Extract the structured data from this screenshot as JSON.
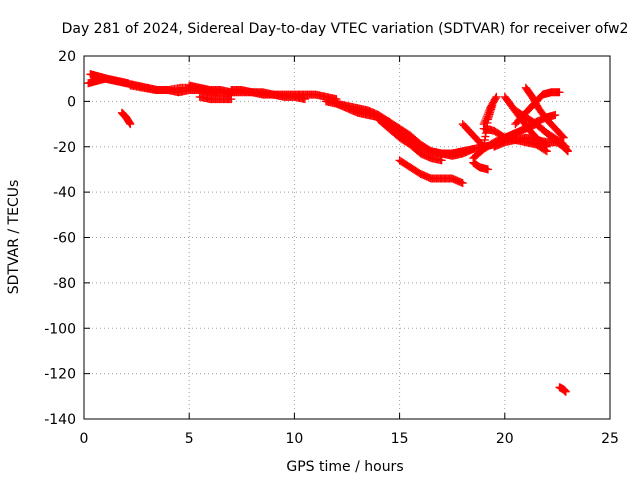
{
  "chart_data": {
    "type": "scatter",
    "title": "Day 281 of 2024, Sidereal Day-to-day VTEC variation (SDTVAR) for receiver ofw2",
    "xlabel": "GPS time / hours",
    "ylabel": "SDTVAR / TECUs",
    "xlim": [
      0,
      25
    ],
    "ylim": [
      -140,
      20
    ],
    "xticks": [
      0,
      5,
      10,
      15,
      20,
      25
    ],
    "yticks": [
      -140,
      -120,
      -100,
      -80,
      -60,
      -40,
      -20,
      0,
      20
    ],
    "grid": true,
    "marker": "+",
    "color": "#ff0000",
    "series": [
      {
        "name": "s1",
        "x": [
          0.2,
          0.6,
          1.0,
          1.5,
          2.0,
          2.5,
          3.0,
          3.5,
          4.0,
          4.5,
          5.0,
          5.5,
          6.0,
          6.5,
          7.0
        ],
        "y": [
          8,
          9,
          10,
          9,
          8,
          7,
          6,
          5,
          5,
          4,
          5,
          5,
          4,
          4,
          3
        ]
      },
      {
        "name": "s2",
        "x": [
          0.3,
          0.7,
          1.1,
          1.6,
          2.1
        ],
        "y": [
          12,
          11,
          10,
          9,
          8
        ]
      },
      {
        "name": "s3",
        "x": [
          1.8,
          2.0,
          2.2
        ],
        "y": [
          -5,
          -7,
          -10
        ]
      },
      {
        "name": "s4",
        "x": [
          2.2,
          2.8,
          3.4,
          4.0,
          4.6,
          5.2,
          5.8,
          6.3
        ],
        "y": [
          7,
          6,
          5,
          5,
          6,
          6,
          5,
          4
        ]
      },
      {
        "name": "s5",
        "x": [
          5.0,
          5.5,
          6.0,
          6.5,
          7.0,
          7.5,
          8.0,
          8.5,
          9.0,
          9.5,
          10.0,
          10.5,
          11.0,
          11.5,
          12.0
        ],
        "y": [
          7,
          6,
          5,
          5,
          4,
          4,
          4,
          4,
          3,
          3,
          3,
          3,
          3,
          2,
          1
        ]
      },
      {
        "name": "s6",
        "x": [
          5.5,
          6.0,
          6.5,
          7.0
        ],
        "y": [
          2,
          1,
          1,
          1
        ]
      },
      {
        "name": "s7",
        "x": [
          7.0,
          7.5,
          8.0,
          8.5,
          9.0,
          9.5,
          10.0,
          10.5
        ],
        "y": [
          5,
          5,
          4,
          3,
          3,
          2,
          2,
          1
        ]
      },
      {
        "name": "s8",
        "x": [
          11.5,
          12.0,
          12.5,
          13.0,
          13.5,
          14.0,
          14.5,
          15.0,
          15.5,
          16.0,
          16.5,
          17.0,
          17.5,
          18.0
        ],
        "y": [
          0,
          -1,
          -2,
          -3,
          -4,
          -6,
          -9,
          -13,
          -17,
          -20,
          -22,
          -23,
          -23,
          -22
        ]
      },
      {
        "name": "s9",
        "x": [
          12.0,
          12.5,
          13.0,
          13.5,
          14.0,
          14.5,
          15.0,
          15.5,
          16.0,
          16.5,
          17.0,
          17.5,
          18.0,
          18.5
        ],
        "y": [
          -1,
          -3,
          -5,
          -6,
          -7,
          -9,
          -12,
          -15,
          -19,
          -22,
          -23,
          -24,
          -23,
          -21
        ]
      },
      {
        "name": "s10",
        "x": [
          15.0,
          15.5,
          16.0,
          16.5,
          17.0,
          17.5,
          18.0
        ],
        "y": [
          -26,
          -29,
          -32,
          -34,
          -34,
          -34,
          -36
        ]
      },
      {
        "name": "s11",
        "x": [
          14.0,
          14.5,
          15.0,
          15.5,
          16.0,
          16.5,
          17.0
        ],
        "y": [
          -8,
          -12,
          -16,
          -19,
          -23,
          -25,
          -26
        ]
      },
      {
        "name": "s12",
        "x": [
          17.0,
          17.5,
          18.0,
          18.5,
          19.0,
          19.5,
          20.0,
          20.5,
          21.0,
          21.5,
          22.0,
          22.5,
          22.8
        ],
        "y": [
          -23,
          -23,
          -22,
          -21,
          -20,
          -19,
          -16,
          -14,
          -12,
          -10,
          -14,
          -18,
          -20
        ]
      },
      {
        "name": "s13",
        "x": [
          18.0,
          18.5,
          19.0,
          19.2,
          19.4
        ],
        "y": [
          -10,
          -15,
          -20,
          -8,
          -2
        ]
      },
      {
        "name": "s14",
        "x": [
          19.0,
          19.3,
          19.6
        ],
        "y": [
          -10,
          -3,
          2
        ]
      },
      {
        "name": "s15",
        "x": [
          18.5,
          18.8,
          19.2
        ],
        "y": [
          -27,
          -29,
          -30
        ]
      },
      {
        "name": "s16",
        "x": [
          19.0,
          19.5,
          20.0,
          20.5,
          21.0,
          21.5,
          22.0
        ],
        "y": [
          -12,
          -13,
          -16,
          -17,
          -18,
          -19,
          -22
        ]
      },
      {
        "name": "s17",
        "x": [
          19.5,
          20.0,
          20.5,
          21.0,
          21.5,
          22.0,
          22.5
        ],
        "y": [
          -20,
          -18,
          -17,
          -16,
          -17,
          -18,
          -18
        ]
      },
      {
        "name": "s18",
        "x": [
          18.5,
          19.0,
          19.5,
          20.0,
          20.5,
          21.0,
          21.5,
          22.0,
          22.4
        ],
        "y": [
          -25,
          -21,
          -18,
          -16,
          -14,
          -12,
          -9,
          -7,
          -6
        ]
      },
      {
        "name": "s19",
        "x": [
          20.0,
          20.4,
          20.8,
          21.2,
          21.6,
          22.0
        ],
        "y": [
          2,
          -3,
          -8,
          -13,
          -17,
          -20
        ]
      },
      {
        "name": "s20",
        "x": [
          20.5,
          21.0,
          21.5,
          22.0,
          22.5,
          22.9
        ],
        "y": [
          -4,
          -7,
          -10,
          -14,
          -17,
          -20
        ]
      },
      {
        "name": "s21",
        "x": [
          21.0,
          21.3,
          21.6,
          22.0,
          22.4,
          22.8
        ],
        "y": [
          6,
          2,
          -3,
          -8,
          -12,
          -16
        ]
      },
      {
        "name": "s22",
        "x": [
          20.5,
          21.0,
          21.4,
          21.8,
          22.2,
          22.6
        ],
        "y": [
          -10,
          -5,
          -1,
          3,
          4,
          4
        ]
      },
      {
        "name": "s23",
        "x": [
          22.5,
          22.8,
          23.0
        ],
        "y": [
          -18,
          -20,
          -22
        ]
      },
      {
        "name": "s24",
        "x": [
          22.6,
          22.8,
          22.9
        ],
        "y": [
          -126,
          -127,
          -128
        ]
      }
    ]
  }
}
